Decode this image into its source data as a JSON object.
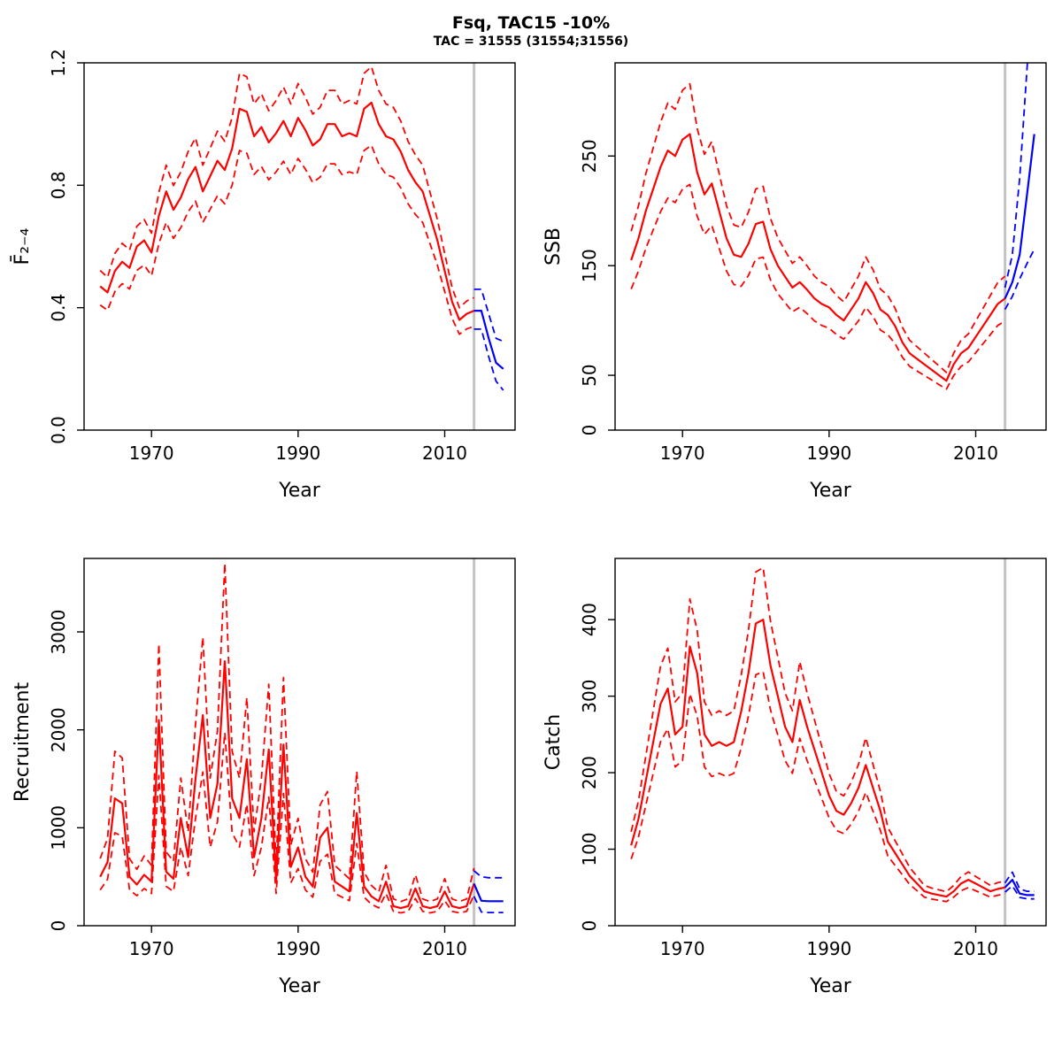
{
  "header": {
    "title": "Fsq, TAC15 -10%",
    "subtitle": "TAC = 31555 (31554;31556)"
  },
  "colors": {
    "historical": "#FF0000",
    "projection": "#0000FF",
    "divider": "#C3C3C3",
    "axis": "#000000",
    "background": "#FFFFFF"
  },
  "chart_data": [
    {
      "id": "fbar",
      "type": "line",
      "ylabel": "F̄₂₋₄",
      "xlabel": "Year",
      "xlim": [
        1960.8,
        2019.6
      ],
      "ylim": [
        0,
        1.2
      ],
      "xticks": [
        1970,
        1990,
        2010
      ],
      "ytick_vals": [
        0,
        0.4,
        0.8,
        1.2
      ],
      "ytick_labels": [
        "0.0",
        "0.4",
        "0.8",
        "1.2"
      ],
      "divider_year": 2014,
      "historical": {
        "color": "#FF0000",
        "start_year": 1963,
        "hi_frac": 0.11,
        "lo_frac": 0.13,
        "mean": [
          0.47,
          0.45,
          0.52,
          0.55,
          0.53,
          0.6,
          0.62,
          0.58,
          0.7,
          0.78,
          0.72,
          0.76,
          0.82,
          0.86,
          0.78,
          0.83,
          0.88,
          0.85,
          0.92,
          1.05,
          1.04,
          0.96,
          0.99,
          0.94,
          0.97,
          1.01,
          0.96,
          1.02,
          0.98,
          0.93,
          0.95,
          1.0,
          1.0,
          0.96,
          0.97,
          0.96,
          1.05,
          1.07,
          1.0,
          0.96,
          0.95,
          0.91,
          0.85,
          0.81,
          0.78,
          0.7,
          0.62,
          0.52,
          0.42,
          0.36,
          0.38,
          0.39
        ]
      },
      "projection": {
        "color": "#0000FF",
        "start_year": 2014,
        "mean": [
          0.39,
          0.39,
          0.3,
          0.22,
          0.2
        ],
        "hi": [
          0.46,
          0.46,
          0.38,
          0.3,
          0.29
        ],
        "lo": [
          0.33,
          0.33,
          0.24,
          0.16,
          0.13
        ]
      }
    },
    {
      "id": "ssb",
      "type": "line",
      "ylabel": "SSB",
      "xlabel": "Year",
      "xlim": [
        1960.8,
        2019.6
      ],
      "ylim": [
        0,
        335
      ],
      "xticks": [
        1970,
        1990,
        2010
      ],
      "ytick_vals": [
        0,
        50,
        150,
        250
      ],
      "ytick_labels": [
        "0",
        "50",
        "150",
        "250"
      ],
      "divider_year": 2014,
      "historical": {
        "color": "#FF0000",
        "start_year": 1963,
        "hi_frac": 0.17,
        "lo_frac": 0.17,
        "mean": [
          155,
          175,
          200,
          220,
          240,
          255,
          250,
          265,
          270,
          235,
          215,
          225,
          200,
          175,
          160,
          158,
          170,
          188,
          190,
          165,
          150,
          140,
          130,
          135,
          128,
          120,
          115,
          112,
          105,
          100,
          110,
          120,
          135,
          125,
          110,
          105,
          95,
          80,
          70,
          65,
          60,
          55,
          50,
          45,
          60,
          70,
          75,
          85,
          95,
          105,
          115,
          120
        ]
      },
      "projection": {
        "color": "#0000FF",
        "start_year": 2014,
        "mean": [
          120,
          135,
          160,
          215,
          270
        ],
        "hi": [
          130,
          160,
          230,
          330,
          430
        ],
        "lo": [
          110,
          122,
          138,
          152,
          165
        ]
      }
    },
    {
      "id": "recruitment",
      "type": "line",
      "ylabel": "Recruitment",
      "xlabel": "Year",
      "xlim": [
        1960.8,
        2019.6
      ],
      "ylim": [
        0,
        3750
      ],
      "xticks": [
        1970,
        1990,
        2010
      ],
      "ytick_vals": [
        0,
        1000,
        2000,
        3000
      ],
      "ytick_labels": [
        "0",
        "1000",
        "2000",
        "3000"
      ],
      "divider_year": 2014,
      "historical": {
        "color": "#FF0000",
        "start_year": 1963,
        "hi_frac": 0.37,
        "lo_frac": 0.27,
        "mean": [
          500,
          650,
          1300,
          1250,
          500,
          420,
          520,
          450,
          2100,
          550,
          480,
          1100,
          700,
          1500,
          2150,
          1100,
          1450,
          2700,
          1300,
          1100,
          1700,
          700,
          1100,
          1800,
          450,
          1850,
          600,
          800,
          500,
          400,
          900,
          1000,
          450,
          400,
          350,
          1150,
          400,
          300,
          250,
          450,
          200,
          180,
          200,
          380,
          200,
          180,
          200,
          350,
          200,
          180,
          200,
          430
        ]
      },
      "projection": {
        "color": "#0000FF",
        "start_year": 2014,
        "mean": [
          430,
          255,
          250,
          250,
          250
        ],
        "hi": [
          560,
          500,
          490,
          490,
          490
        ],
        "lo": [
          300,
          140,
          135,
          135,
          135
        ]
      }
    },
    {
      "id": "catch",
      "type": "line",
      "ylabel": "Catch",
      "xlabel": "Year",
      "xlim": [
        1960.8,
        2019.6
      ],
      "ylim": [
        0,
        480
      ],
      "xticks": [
        1970,
        1990,
        2010
      ],
      "ytick_vals": [
        0,
        100,
        200,
        300,
        400
      ],
      "ytick_labels": [
        "0",
        "100",
        "200",
        "300",
        "400"
      ],
      "divider_year": 2014,
      "historical": {
        "color": "#FF0000",
        "start_year": 1963,
        "hi_frac": 0.17,
        "lo_frac": 0.17,
        "mean": [
          105,
          140,
          190,
          240,
          290,
          310,
          250,
          260,
          365,
          330,
          250,
          235,
          240,
          235,
          240,
          280,
          330,
          395,
          400,
          340,
          300,
          260,
          240,
          295,
          260,
          230,
          200,
          170,
          150,
          145,
          160,
          180,
          210,
          180,
          150,
          110,
          95,
          80,
          65,
          55,
          45,
          42,
          40,
          38,
          45,
          55,
          60,
          55,
          50,
          45,
          48,
          50
        ]
      },
      "projection": {
        "color": "#0000FF",
        "start_year": 2014,
        "mean": [
          50,
          60,
          42,
          40,
          40
        ],
        "hi": [
          56,
          70,
          48,
          45,
          45
        ],
        "lo": [
          44,
          52,
          37,
          35,
          35
        ]
      }
    }
  ]
}
